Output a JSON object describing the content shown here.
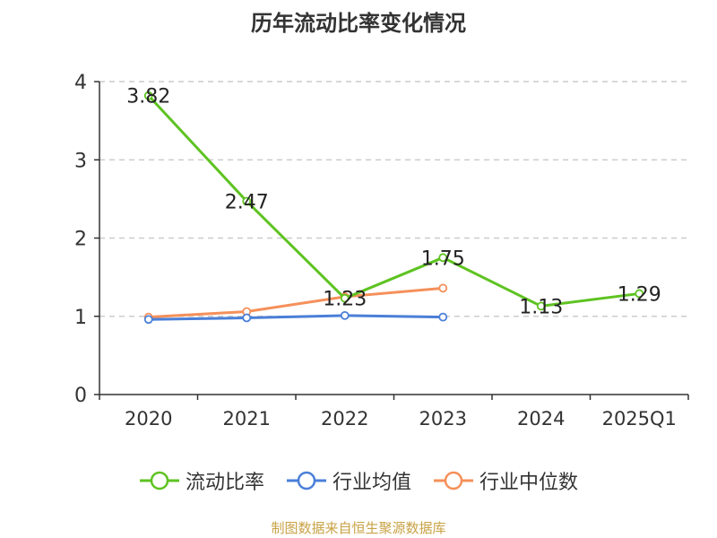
{
  "title": "历年流动比率变化情况",
  "source_note": "制图数据来自恒生聚源数据库",
  "chart_data": {
    "type": "line",
    "categories": [
      "2020",
      "2021",
      "2022",
      "2023",
      "2024",
      "2025Q1"
    ],
    "ylim": [
      0,
      4
    ],
    "yticks": [
      "0",
      "1",
      "2",
      "3",
      "4"
    ],
    "grid": true,
    "legend_position": "bottom-center",
    "series": [
      {
        "name": "流动比率",
        "color": "#5ec321",
        "values": [
          3.82,
          2.47,
          1.23,
          1.75,
          1.13,
          1.29
        ],
        "labels": [
          "3.82",
          "2.47",
          "1.23",
          "1.75",
          "1.13",
          "1.29"
        ]
      },
      {
        "name": "行业均值",
        "color": "#4a7fd8",
        "values": [
          0.96,
          0.98,
          1.01,
          0.99,
          null,
          null
        ]
      },
      {
        "name": "行业中位数",
        "color": "#f5905a",
        "values": [
          0.99,
          1.06,
          1.25,
          1.36,
          null,
          null
        ]
      }
    ]
  }
}
